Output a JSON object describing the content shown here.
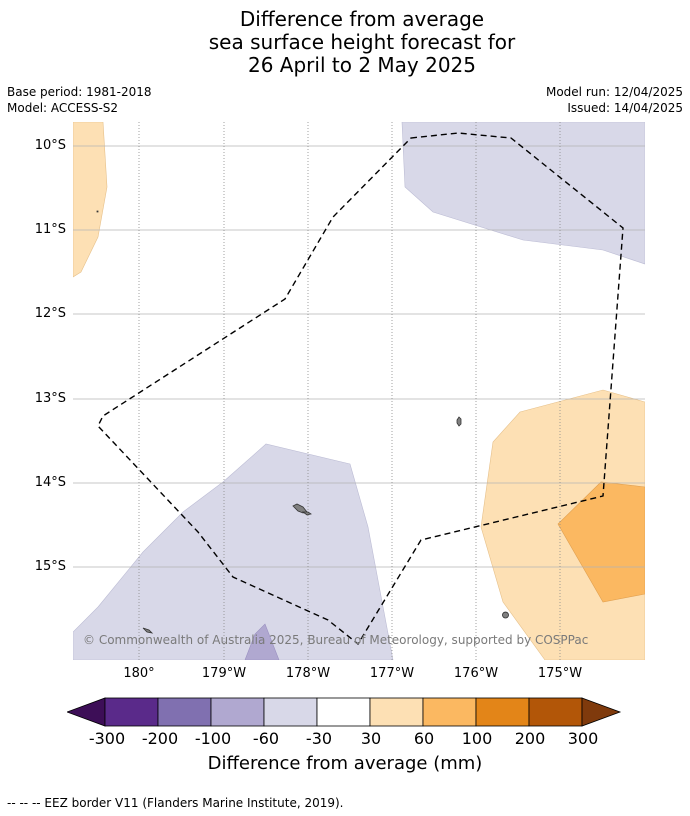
{
  "title": {
    "line1": "Difference from average",
    "line2": "sea surface height forecast for",
    "line3": "26 April to 2 May 2025"
  },
  "meta": {
    "base_period": "Base period: 1981-2018",
    "model": "Model: ACCESS-S2",
    "model_run": "Model run: 12/04/2025",
    "issued": "Issued: 14/04/2025"
  },
  "map": {
    "latitude_labels": [
      "10°S",
      "11°S",
      "12°S",
      "13°S",
      "14°S",
      "15°S"
    ],
    "longitude_labels": [
      "180°",
      "179°W",
      "178°W",
      "177°W",
      "176°W",
      "175°W"
    ],
    "copyright": "© Commonwealth of Australia 2025, Bureau of Meteorology, supported by COSPPac",
    "colors": {
      "anomaly_-60_-30": "#d8d8e8",
      "anomaly_-100_-60": "#b0a8d0",
      "anomaly_30_60": "#fde0b4",
      "anomaly_60_100": "#fbb861",
      "eez_border": "#000000",
      "island_fill": "#808080"
    }
  },
  "colorbar": {
    "labels": [
      "-300",
      "-200",
      "-100",
      "-60",
      "-30",
      "30",
      "60",
      "100",
      "200",
      "300"
    ],
    "colors": [
      "#3d0e57",
      "#5a2a8a",
      "#8070b0",
      "#b0a8d0",
      "#d8d8e8",
      "#ffffff",
      "#fde0b4",
      "#fbb861",
      "#e38518",
      "#b25608",
      "#7f3a0c"
    ],
    "title": "Difference from average (mm)"
  },
  "footer": "--  --  -- EEZ border V11 (Flanders Marine Institute, 2019)."
}
